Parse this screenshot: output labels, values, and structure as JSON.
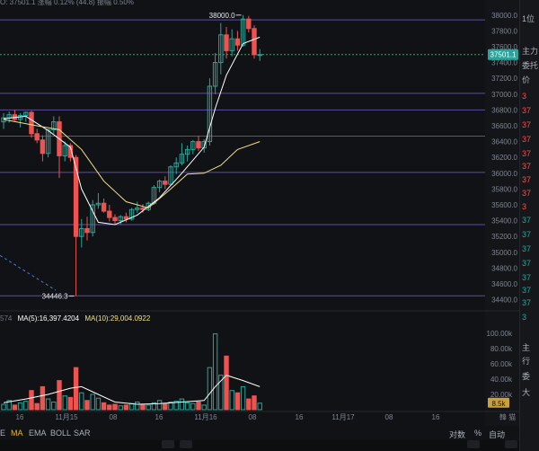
{
  "header": {
    "info": "O: 37501.1  涨幅 0.12% (44.8)  振幅 0.50%"
  },
  "colors": {
    "up": "#26a69a",
    "down": "#ef5350",
    "ma5": "#ffffff",
    "ma10": "#f0e08a",
    "grid": "#5b4ea6",
    "price": "#e84a4a"
  },
  "chart_data": {
    "type": "candlestick",
    "price_axis": {
      "ticks": [
        "38000.0",
        "37800.0",
        "37600.0",
        "37400.0",
        "37200.0",
        "37000.0",
        "36800.0",
        "36600.0",
        "36400.0",
        "36200.0",
        "36000.0",
        "35800.0",
        "35600.0",
        "35400.0",
        "35200.0",
        "35000.0",
        "34800.0",
        "34600.0",
        "34400.0"
      ],
      "range": [
        34350,
        38100
      ]
    },
    "last_price": "37501.1",
    "high_marker": "38000.0",
    "low_marker": "34446.3",
    "time_axis": [
      "16",
      "11月15",
      "08",
      "16",
      "11月16",
      "08",
      "16",
      "11月17",
      "08",
      "16"
    ],
    "horizontal_levels": [
      37940,
      37010,
      36800,
      36470,
      36010,
      35350,
      34450
    ],
    "candles": [
      {
        "o": 36650,
        "h": 36760,
        "l": 36560,
        "c": 36700
      },
      {
        "o": 36700,
        "h": 36780,
        "l": 36640,
        "c": 36740
      },
      {
        "o": 36740,
        "h": 36800,
        "l": 36660,
        "c": 36680
      },
      {
        "o": 36680,
        "h": 36760,
        "l": 36580,
        "c": 36730
      },
      {
        "o": 36730,
        "h": 36780,
        "l": 36650,
        "c": 36770
      },
      {
        "o": 36770,
        "h": 36790,
        "l": 36450,
        "c": 36500
      },
      {
        "o": 36500,
        "h": 36560,
        "l": 36380,
        "c": 36420
      },
      {
        "o": 36420,
        "h": 36480,
        "l": 36150,
        "c": 36250
      },
      {
        "o": 36250,
        "h": 36560,
        "l": 36200,
        "c": 36550
      },
      {
        "o": 36550,
        "h": 36720,
        "l": 36500,
        "c": 36650
      },
      {
        "o": 36650,
        "h": 36720,
        "l": 35940,
        "c": 36220
      },
      {
        "o": 36220,
        "h": 36400,
        "l": 36150,
        "c": 36350
      },
      {
        "o": 36350,
        "h": 36380,
        "l": 36150,
        "c": 36200
      },
      {
        "o": 36200,
        "h": 36230,
        "l": 34446,
        "c": 35200
      },
      {
        "o": 35200,
        "h": 35420,
        "l": 35060,
        "c": 35300
      },
      {
        "o": 35300,
        "h": 35450,
        "l": 35150,
        "c": 35250
      },
      {
        "o": 35250,
        "h": 35660,
        "l": 35200,
        "c": 35600
      },
      {
        "o": 35600,
        "h": 35750,
        "l": 35550,
        "c": 35620
      },
      {
        "o": 35620,
        "h": 35680,
        "l": 35500,
        "c": 35520
      },
      {
        "o": 35520,
        "h": 35600,
        "l": 35390,
        "c": 35440
      },
      {
        "o": 35440,
        "h": 35480,
        "l": 35360,
        "c": 35400
      },
      {
        "o": 35400,
        "h": 35470,
        "l": 35350,
        "c": 35450
      },
      {
        "o": 35450,
        "h": 35500,
        "l": 35380,
        "c": 35420
      },
      {
        "o": 35420,
        "h": 35560,
        "l": 35400,
        "c": 35540
      },
      {
        "o": 35540,
        "h": 35640,
        "l": 35500,
        "c": 35560
      },
      {
        "o": 35560,
        "h": 35610,
        "l": 35500,
        "c": 35540
      },
      {
        "o": 35540,
        "h": 35640,
        "l": 35520,
        "c": 35620
      },
      {
        "o": 35620,
        "h": 35850,
        "l": 35600,
        "c": 35820
      },
      {
        "o": 35820,
        "h": 35920,
        "l": 35760,
        "c": 35900
      },
      {
        "o": 35900,
        "h": 35960,
        "l": 35800,
        "c": 35860
      },
      {
        "o": 35860,
        "h": 36100,
        "l": 35840,
        "c": 36080
      },
      {
        "o": 36080,
        "h": 36200,
        "l": 35990,
        "c": 36130
      },
      {
        "o": 36130,
        "h": 36380,
        "l": 36100,
        "c": 36240
      },
      {
        "o": 36240,
        "h": 36350,
        "l": 36150,
        "c": 36300
      },
      {
        "o": 36300,
        "h": 36420,
        "l": 36240,
        "c": 36400
      },
      {
        "o": 36400,
        "h": 36470,
        "l": 36280,
        "c": 36320
      },
      {
        "o": 36320,
        "h": 36430,
        "l": 36260,
        "c": 36400
      },
      {
        "o": 36400,
        "h": 37200,
        "l": 36350,
        "c": 37100
      },
      {
        "o": 37100,
        "h": 37520,
        "l": 37000,
        "c": 37400
      },
      {
        "o": 37400,
        "h": 37900,
        "l": 37250,
        "c": 37750
      },
      {
        "o": 37750,
        "h": 37850,
        "l": 37450,
        "c": 37550
      },
      {
        "o": 37550,
        "h": 37820,
        "l": 37480,
        "c": 37700
      },
      {
        "o": 37700,
        "h": 37800,
        "l": 37550,
        "c": 37620
      },
      {
        "o": 37620,
        "h": 38000,
        "l": 37600,
        "c": 37950
      },
      {
        "o": 37950,
        "h": 37990,
        "l": 37780,
        "c": 37830
      },
      {
        "o": 37830,
        "h": 37870,
        "l": 37450,
        "c": 37500
      },
      {
        "o": 37500,
        "h": 37570,
        "l": 37420,
        "c": 37501
      }
    ],
    "ma_lines": [
      {
        "name": "MA5",
        "points": [
          [
            0,
            36690
          ],
          [
            4,
            36720
          ],
          [
            8,
            36540
          ],
          [
            12,
            36330
          ],
          [
            14,
            35800
          ],
          [
            17,
            35380
          ],
          [
            20,
            35350
          ],
          [
            24,
            35470
          ],
          [
            28,
            35690
          ],
          [
            32,
            36000
          ],
          [
            36,
            36330
          ],
          [
            38,
            36820
          ],
          [
            40,
            37240
          ],
          [
            43,
            37640
          ],
          [
            46,
            37720
          ]
        ]
      },
      {
        "name": "MA10",
        "points": [
          [
            0,
            36680
          ],
          [
            6,
            36600
          ],
          [
            10,
            36550
          ],
          [
            14,
            36300
          ],
          [
            18,
            35900
          ],
          [
            22,
            35640
          ],
          [
            26,
            35560
          ],
          [
            30,
            35800
          ],
          [
            33,
            35990
          ],
          [
            36,
            36000
          ],
          [
            39,
            36100
          ],
          [
            42,
            36300
          ],
          [
            46,
            36400
          ]
        ]
      }
    ],
    "volume": {
      "label_prefix": "574",
      "ma5_label": "MA(5):16,397.4204",
      "ma10_label": "MA(10):29,004.0922",
      "ticks": [
        "100.00k",
        "80.00k",
        "60.00k",
        "40.00k",
        "20.00k"
      ],
      "range": [
        0,
        115000
      ],
      "current": "8.5k",
      "values": [
        7,
        12,
        6,
        9,
        11,
        25,
        8,
        30,
        14,
        10,
        38,
        18,
        16,
        55,
        22,
        12,
        20,
        15,
        9,
        6,
        7,
        5,
        6,
        8,
        10,
        7,
        6,
        9,
        12,
        8,
        10,
        11,
        14,
        9,
        8,
        10,
        6,
        55,
        99,
        45,
        70,
        25,
        22,
        30,
        14,
        18,
        8.5
      ],
      "up": [
        true,
        true,
        false,
        true,
        true,
        false,
        false,
        false,
        true,
        true,
        false,
        true,
        false,
        false,
        true,
        false,
        true,
        true,
        false,
        false,
        false,
        true,
        false,
        true,
        true,
        false,
        true,
        true,
        true,
        false,
        true,
        true,
        true,
        true,
        true,
        false,
        true,
        true,
        true,
        true,
        false,
        true,
        false,
        true,
        false,
        false,
        true
      ],
      "ma_line": [
        [
          0,
          9
        ],
        [
          4,
          14
        ],
        [
          8,
          20
        ],
        [
          12,
          28
        ],
        [
          14,
          30
        ],
        [
          17,
          20
        ],
        [
          20,
          10
        ],
        [
          24,
          7
        ],
        [
          28,
          8
        ],
        [
          32,
          10
        ],
        [
          36,
          12
        ],
        [
          38,
          30
        ],
        [
          40,
          45
        ],
        [
          43,
          38
        ],
        [
          46,
          30
        ]
      ]
    }
  },
  "toolbar": {
    "items": [
      "E",
      "MA",
      "EMA",
      "BOLL",
      "SAR"
    ],
    "active": "MA",
    "right_items": [
      "对数",
      "%",
      "自动"
    ],
    "corner": "韓 猫"
  },
  "right_panel": {
    "rows": [
      "1位",
      "主力",
      "委托",
      "价",
      "3",
      "37",
      "37",
      "37",
      "37",
      "37",
      "37",
      "37",
      "3",
      "37",
      "37",
      "37",
      "37",
      "37",
      "37",
      "37",
      "3",
      "主",
      "行",
      "委",
      "大"
    ]
  }
}
